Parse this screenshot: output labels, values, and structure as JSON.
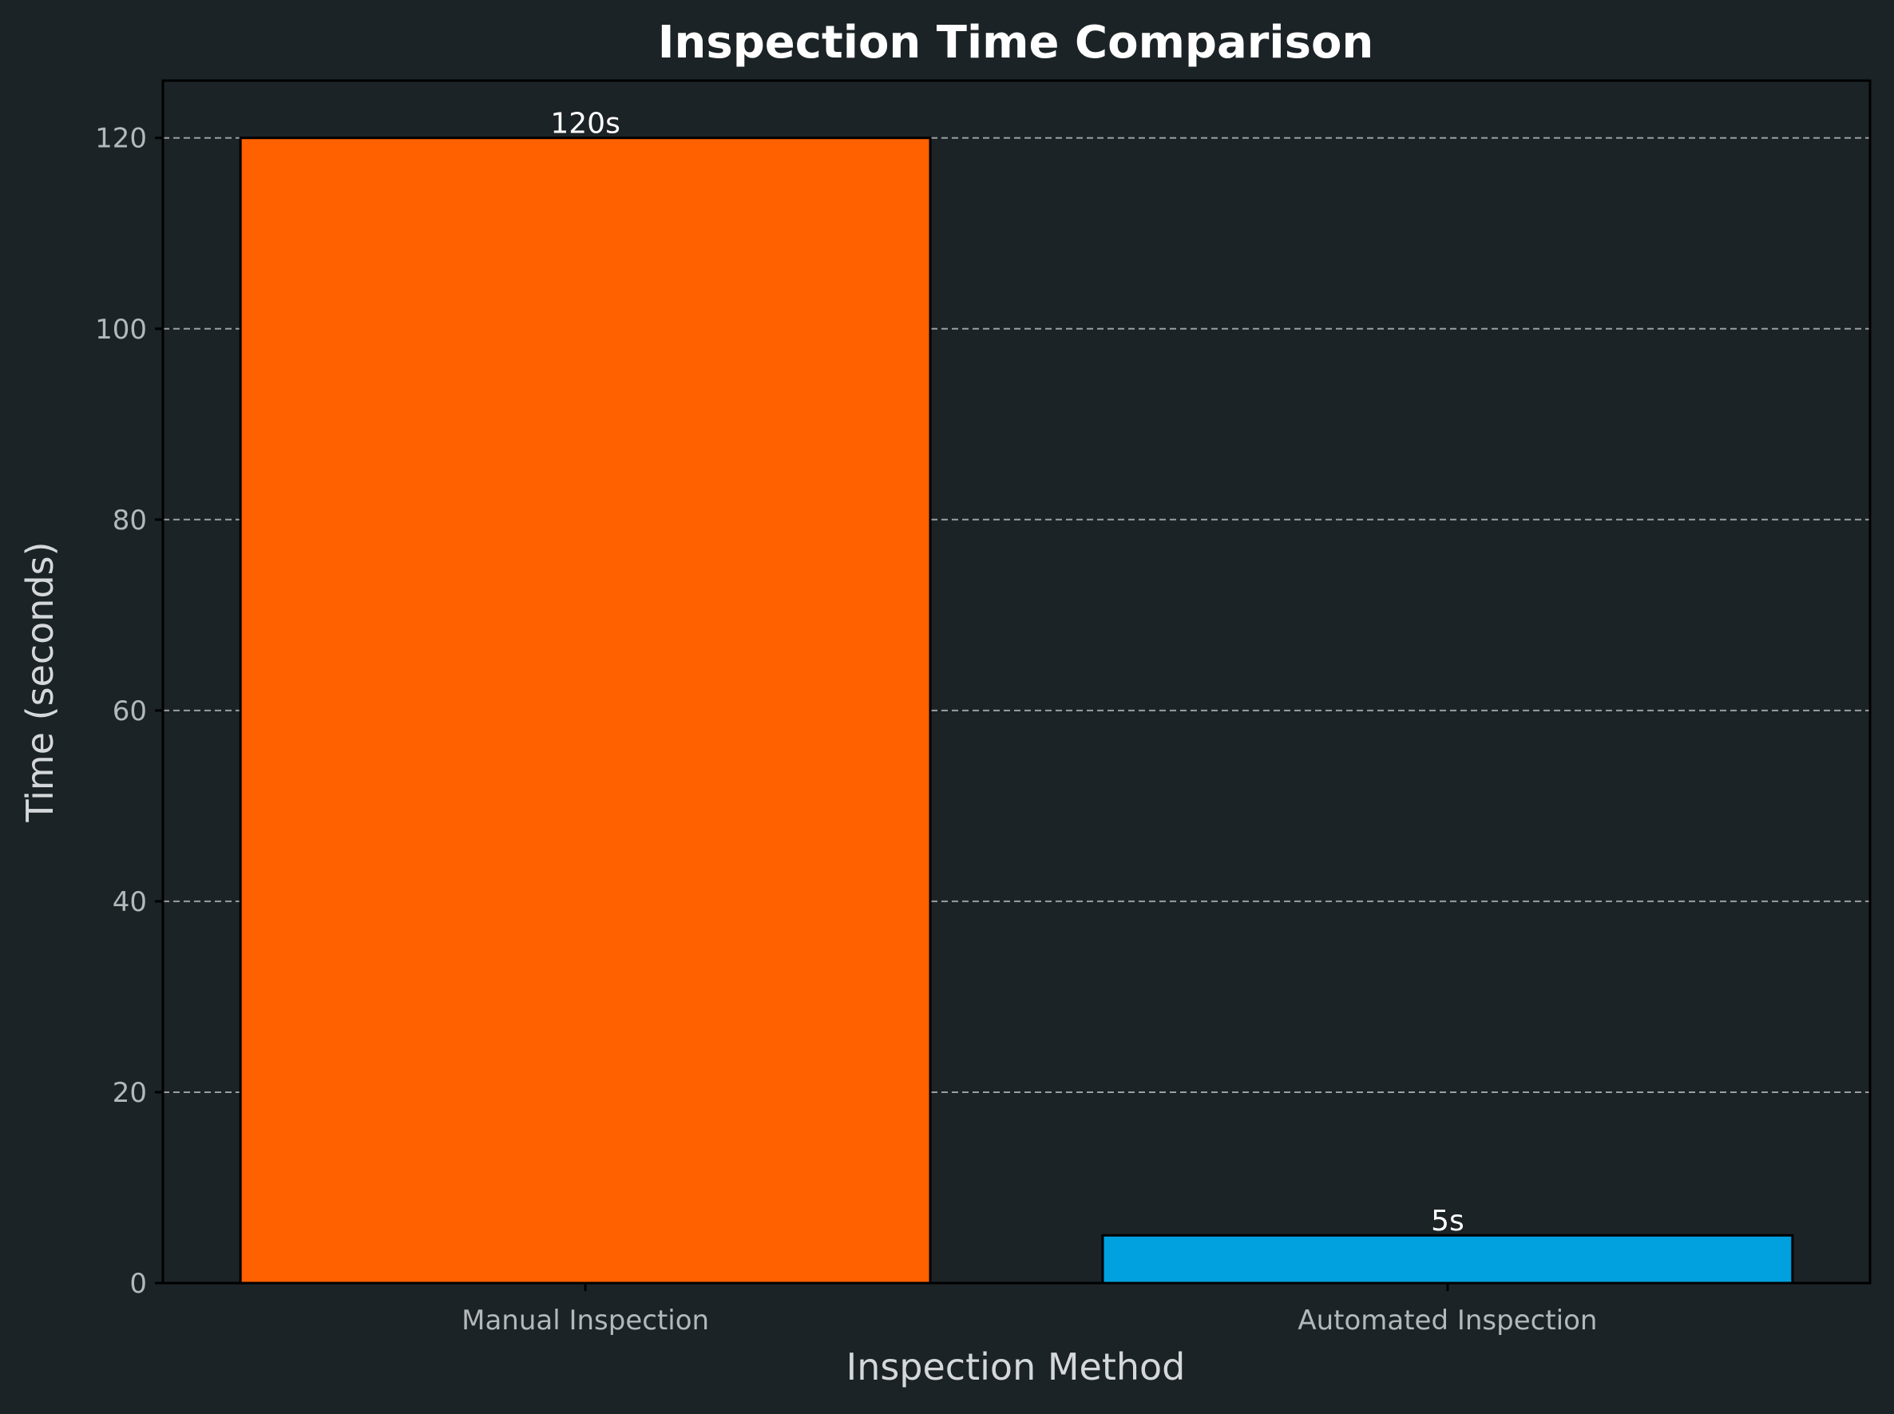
{
  "chart_data": {
    "type": "bar",
    "title": "Inspection Time Comparison",
    "xlabel": "Inspection Method",
    "ylabel": "Time (seconds)",
    "categories": [
      "Manual Inspection",
      "Automated Inspection"
    ],
    "values": [
      120,
      5
    ],
    "value_labels": [
      "120s",
      "5s"
    ],
    "colors": [
      "#ff6100",
      "#00a1de"
    ],
    "ylim": [
      0,
      126
    ],
    "yticks": [
      0,
      20,
      40,
      60,
      80,
      100,
      120
    ],
    "ytick_labels": [
      "0",
      "20",
      "40",
      "60",
      "80",
      "100",
      "120"
    ],
    "grid": "y-dashed",
    "background_color": "#1c2326"
  }
}
